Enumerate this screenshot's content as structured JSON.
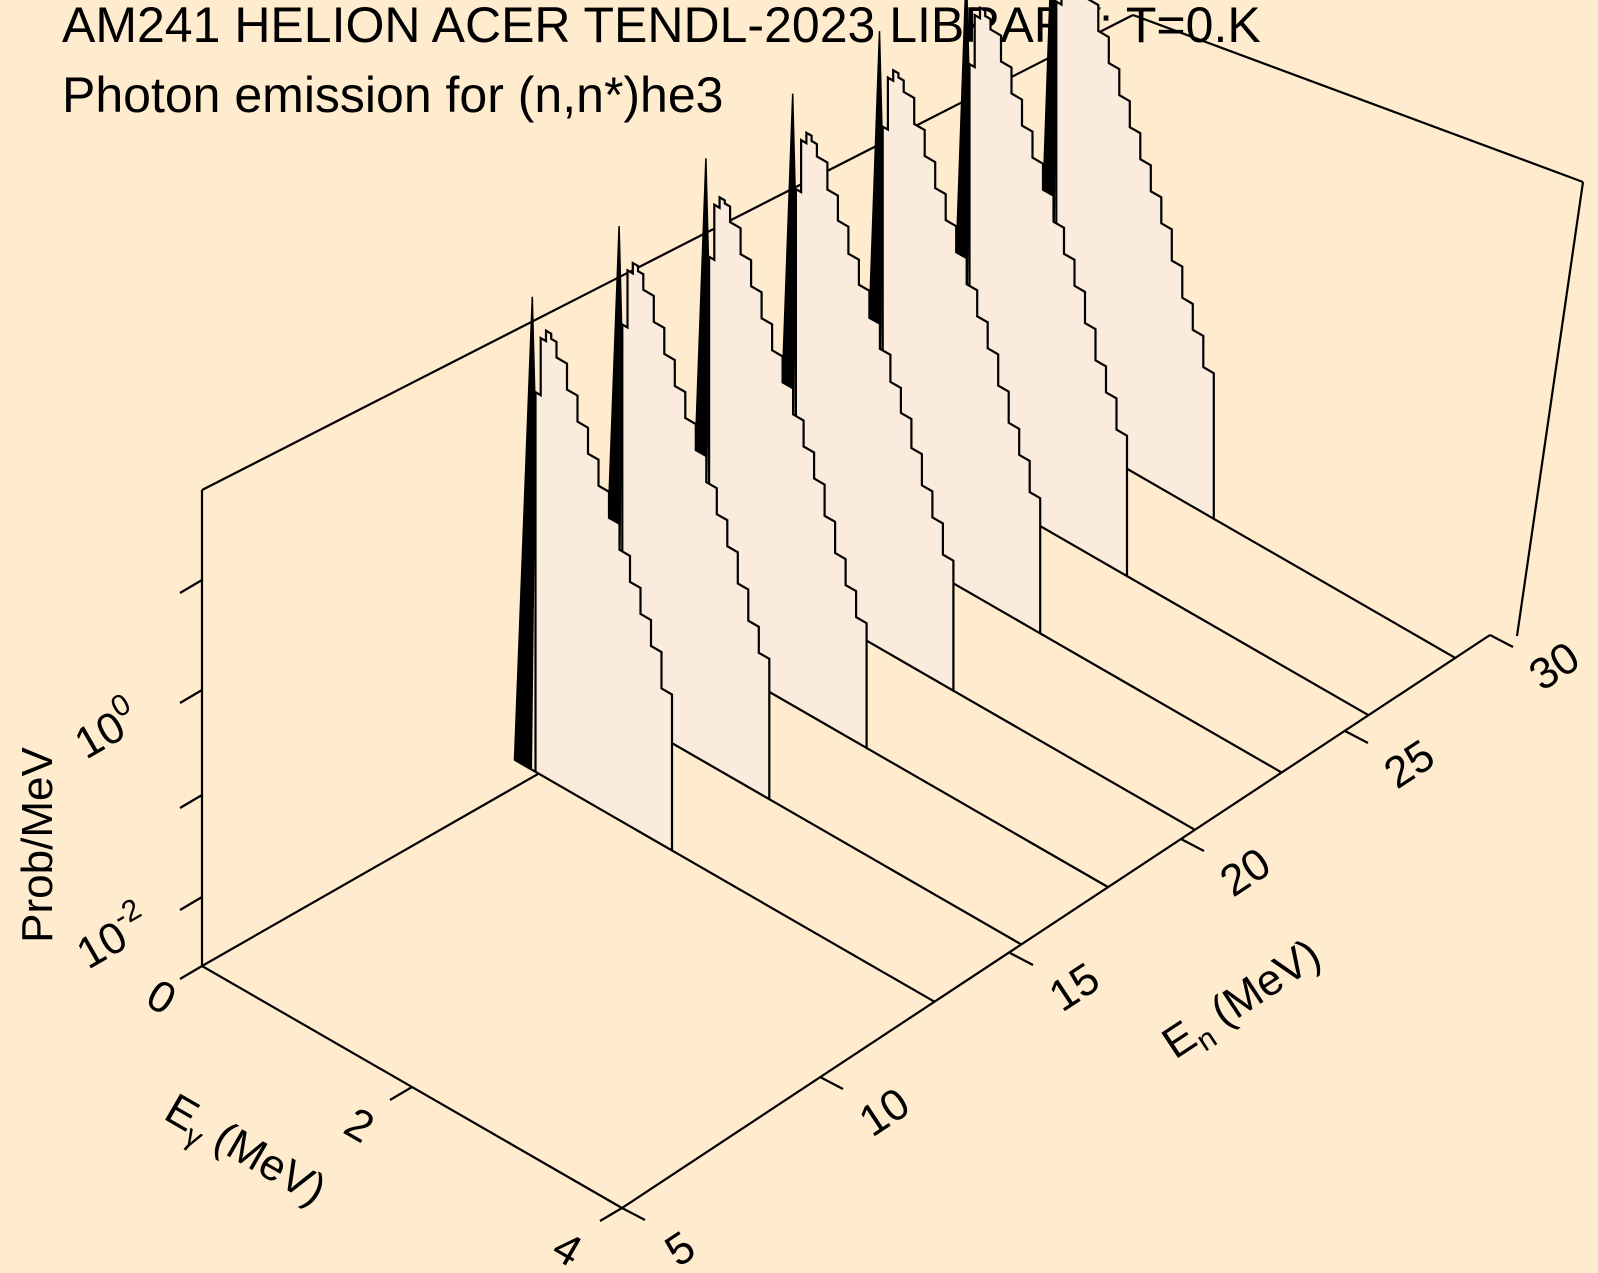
{
  "title_line1": "AM241 HELION ACER TENDL-2023 LIBRARY; T=0.K",
  "title_line2": "Photon emission for (n,n*)he3",
  "chart_data": {
    "type": "area",
    "title": "AM241 HELION ACER TENDL-2023 LIBRARY; T=0.K",
    "subtitle": "Photon emission for (n,n*)he3",
    "x_axis": {
      "label_main": "E",
      "label_sub": "γ",
      "label_unit": " (MeV)",
      "range": [
        0,
        4
      ],
      "ticks": [
        "0",
        "2",
        "4"
      ]
    },
    "y_axis": {
      "label_main": "E",
      "label_sub": "n",
      "label_unit": " (MeV)",
      "range": [
        5,
        30
      ],
      "ticks": [
        "5",
        "10",
        "15",
        "20",
        "25",
        "30"
      ]
    },
    "z_axis": {
      "label": "Prob/MeV",
      "scale": "log",
      "range_log10": [
        -3,
        2
      ],
      "ticks": [
        {
          "base": "10",
          "exp": "-2",
          "log": -2
        },
        {
          "base": "10",
          "exp": "0",
          "log": 0
        }
      ],
      "minor_ticks_log": [
        -1,
        1
      ]
    },
    "grid": false,
    "background": "#ffebcd",
    "fill_color": "#faebdc",
    "line_color": "#000000",
    "series": [
      {
        "en": 14,
        "peak": {
          "egamma": 0.17,
          "log": 1.55
        },
        "continuum": [
          [
            0.2,
            0.65
          ],
          [
            0.25,
            1.2
          ],
          [
            0.3,
            1.3
          ],
          [
            0.35,
            1.25
          ],
          [
            0.4,
            1.1
          ],
          [
            0.5,
            0.85
          ],
          [
            0.6,
            0.6
          ],
          [
            0.7,
            0.35
          ],
          [
            0.8,
            0.1
          ],
          [
            0.9,
            -0.15
          ],
          [
            1.0,
            -0.4
          ],
          [
            1.1,
            -0.65
          ],
          [
            1.2,
            -0.9
          ],
          [
            1.3,
            -1.15
          ],
          [
            1.4,
            -1.5
          ]
        ]
      },
      {
        "en": 16.5,
        "peak": {
          "egamma": 0.17,
          "log": 1.68
        },
        "continuum": [
          [
            0.2,
            0.75
          ],
          [
            0.25,
            1.3
          ],
          [
            0.3,
            1.4
          ],
          [
            0.35,
            1.35
          ],
          [
            0.4,
            1.2
          ],
          [
            0.5,
            0.95
          ],
          [
            0.6,
            0.7
          ],
          [
            0.7,
            0.45
          ],
          [
            0.8,
            0.2
          ],
          [
            0.9,
            -0.05
          ],
          [
            1.0,
            -0.3
          ],
          [
            1.1,
            -0.55
          ],
          [
            1.2,
            -0.8
          ],
          [
            1.3,
            -1.1
          ],
          [
            1.4,
            -1.4
          ],
          [
            1.5,
            -1.65
          ]
        ]
      },
      {
        "en": 19,
        "peak": {
          "egamma": 0.17,
          "log": 1.78
        },
        "continuum": [
          [
            0.2,
            0.85
          ],
          [
            0.25,
            1.38
          ],
          [
            0.3,
            1.48
          ],
          [
            0.35,
            1.45
          ],
          [
            0.4,
            1.3
          ],
          [
            0.5,
            1.05
          ],
          [
            0.6,
            0.8
          ],
          [
            0.7,
            0.55
          ],
          [
            0.8,
            0.3
          ],
          [
            0.9,
            0.05
          ],
          [
            1.0,
            -0.2
          ],
          [
            1.1,
            -0.45
          ],
          [
            1.2,
            -0.7
          ],
          [
            1.3,
            -1.0
          ],
          [
            1.4,
            -1.3
          ],
          [
            1.5,
            -1.55
          ],
          [
            1.6,
            -1.8
          ]
        ]
      },
      {
        "en": 21.5,
        "peak": {
          "egamma": 0.17,
          "log": 1.85
        },
        "continuum": [
          [
            0.2,
            0.95
          ],
          [
            0.25,
            1.45
          ],
          [
            0.3,
            1.55
          ],
          [
            0.35,
            1.5
          ],
          [
            0.4,
            1.38
          ],
          [
            0.5,
            1.12
          ],
          [
            0.6,
            0.88
          ],
          [
            0.7,
            0.62
          ],
          [
            0.8,
            0.38
          ],
          [
            0.9,
            0.12
          ],
          [
            1.0,
            -0.12
          ],
          [
            1.1,
            -0.38
          ],
          [
            1.2,
            -0.62
          ],
          [
            1.3,
            -0.9
          ],
          [
            1.4,
            -1.2
          ],
          [
            1.5,
            -1.45
          ],
          [
            1.6,
            -1.75
          ]
        ]
      },
      {
        "en": 24,
        "peak": {
          "egamma": 0.17,
          "log": 1.9
        },
        "continuum": [
          [
            0.2,
            1.0
          ],
          [
            0.25,
            1.5
          ],
          [
            0.3,
            1.6
          ],
          [
            0.35,
            1.56
          ],
          [
            0.4,
            1.45
          ],
          [
            0.5,
            1.2
          ],
          [
            0.6,
            0.95
          ],
          [
            0.7,
            0.7
          ],
          [
            0.8,
            0.45
          ],
          [
            0.9,
            0.2
          ],
          [
            1.0,
            -0.05
          ],
          [
            1.1,
            -0.3
          ],
          [
            1.2,
            -0.55
          ],
          [
            1.3,
            -0.85
          ],
          [
            1.4,
            -1.15
          ],
          [
            1.5,
            -1.4
          ],
          [
            1.6,
            -1.7
          ]
        ]
      },
      {
        "en": 26.5,
        "peak": {
          "egamma": 0.17,
          "log": 1.95
        },
        "continuum": [
          [
            0.2,
            1.05
          ],
          [
            0.25,
            1.55
          ],
          [
            0.3,
            1.65
          ],
          [
            0.35,
            1.6
          ],
          [
            0.4,
            1.5
          ],
          [
            0.5,
            1.25
          ],
          [
            0.6,
            1.0
          ],
          [
            0.7,
            0.75
          ],
          [
            0.8,
            0.5
          ],
          [
            0.9,
            0.25
          ],
          [
            1.0,
            0.0
          ],
          [
            1.1,
            -0.25
          ],
          [
            1.2,
            -0.5
          ],
          [
            1.3,
            -0.8
          ],
          [
            1.4,
            -1.1
          ],
          [
            1.5,
            -1.35
          ],
          [
            1.6,
            -1.65
          ]
        ]
      },
      {
        "en": 29,
        "peak": {
          "egamma": 0.17,
          "log": 2.0
        },
        "continuum": [
          [
            0.2,
            1.1
          ],
          [
            0.25,
            1.6
          ],
          [
            0.3,
            1.7
          ],
          [
            0.35,
            1.65
          ],
          [
            0.4,
            1.55
          ],
          [
            0.5,
            1.3
          ],
          [
            0.6,
            1.05
          ],
          [
            0.7,
            0.8
          ],
          [
            0.8,
            0.55
          ],
          [
            0.9,
            0.3
          ],
          [
            1.0,
            0.05
          ],
          [
            1.1,
            -0.2
          ],
          [
            1.2,
            -0.45
          ],
          [
            1.3,
            -0.75
          ],
          [
            1.4,
            -1.05
          ],
          [
            1.5,
            -1.3
          ],
          [
            1.6,
            -1.6
          ]
        ]
      }
    ]
  }
}
